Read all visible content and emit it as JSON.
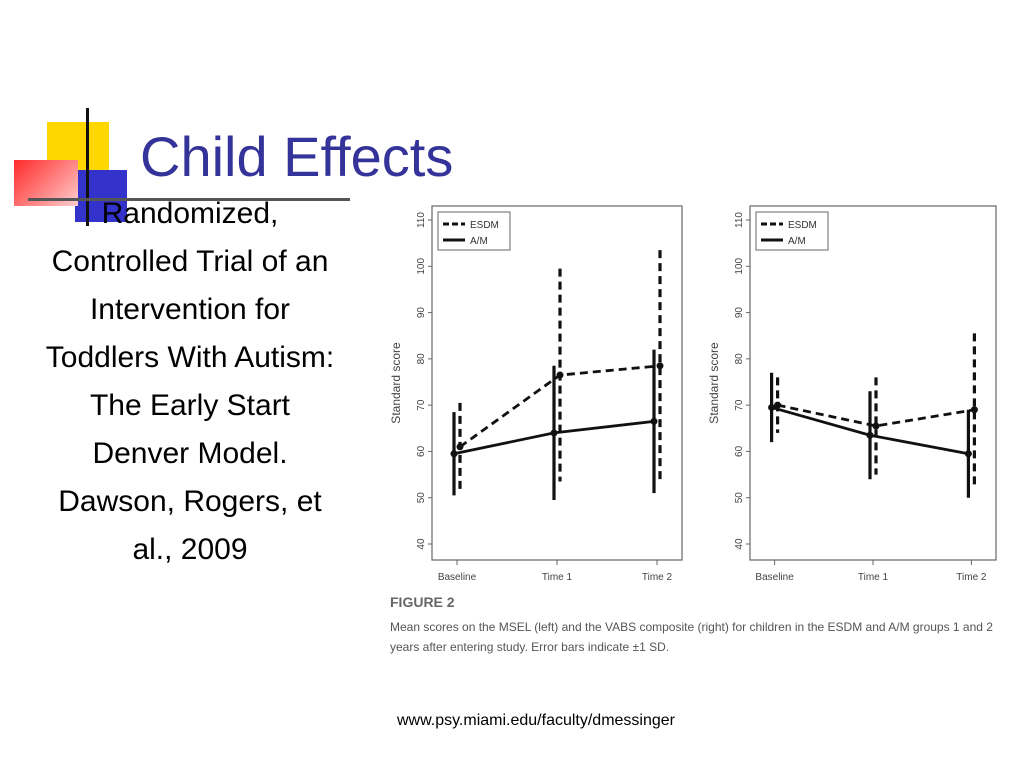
{
  "slide": {
    "title": "Child Effects",
    "body_text": "Randomized, Controlled Trial of an Intervention for Toddlers With Autism: The Early Start Denver Model. Dawson, Rogers, et al., 2009",
    "source": "www.psy.miami.edu/faculty/dmessinger"
  },
  "figure": {
    "label": "FIGURE 2",
    "caption": "Mean scores on the MSEL (left) and the VABS composite (right) for children in the ESDM and A/M groups 1 and 2 years after entering study. Error bars indicate ±1 SD."
  },
  "colors": {
    "title": "#333399",
    "accent_yellow": "#ffd700",
    "accent_blue": "#3333cc",
    "accent_red": "#ff2a2a"
  },
  "chart_data": [
    {
      "type": "line",
      "ylabel": "Standard score",
      "xlabel": "",
      "categories": [
        "Baseline",
        "Time 1",
        "Time 2"
      ],
      "ylim": [
        40,
        110
      ],
      "yticks": [
        40,
        50,
        60,
        70,
        80,
        90,
        100,
        110
      ],
      "legend_position": "top-left",
      "series": [
        {
          "name": "ESDM",
          "style": "dashed",
          "values": [
            61,
            76.5,
            78.5
          ],
          "sd": [
            9.5,
            23,
            25
          ]
        },
        {
          "name": "A/M",
          "style": "solid",
          "values": [
            59.5,
            64,
            66.5
          ],
          "sd": [
            9,
            14.5,
            15.5
          ]
        }
      ]
    },
    {
      "type": "line",
      "ylabel": "Standard score",
      "xlabel": "",
      "categories": [
        "Baseline",
        "Time 1",
        "Time 2"
      ],
      "ylim": [
        40,
        110
      ],
      "yticks": [
        40,
        50,
        60,
        70,
        80,
        90,
        100,
        110
      ],
      "legend_position": "top-left",
      "series": [
        {
          "name": "ESDM",
          "style": "dashed",
          "values": [
            70,
            65.5,
            69
          ],
          "sd": [
            6,
            10.5,
            16.5
          ]
        },
        {
          "name": "A/M",
          "style": "solid",
          "values": [
            69.5,
            63.5,
            59.5
          ],
          "sd": [
            7.5,
            9.5,
            9.5
          ]
        }
      ]
    }
  ]
}
